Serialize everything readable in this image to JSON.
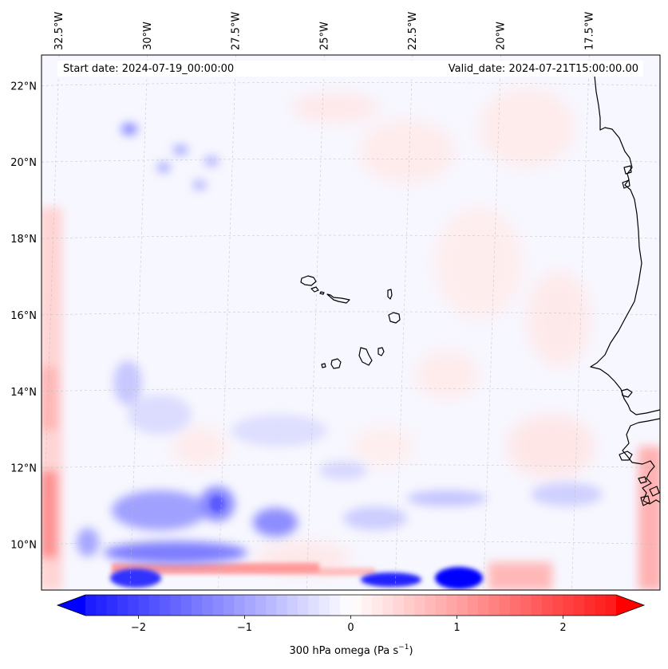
{
  "header": {
    "start_date": "Start date: 2024-07-19_00:00:00",
    "valid_date": "Valid_date: 2024-07-21T15:00:00.00"
  },
  "map": {
    "lat_range": [
      8.8,
      22.8
    ],
    "lon_range": [
      -33.0,
      -15.5
    ],
    "lon_ticks": [
      {
        "value": -32.5,
        "label": "32.5°W"
      },
      {
        "value": -30.0,
        "label": "30°W"
      },
      {
        "value": -27.5,
        "label": "27.5°W"
      },
      {
        "value": -25.0,
        "label": "25°W"
      },
      {
        "value": -22.5,
        "label": "22.5°W"
      },
      {
        "value": -20.0,
        "label": "20°W"
      },
      {
        "value": -17.5,
        "label": "17.5°W"
      }
    ],
    "lat_ticks": [
      {
        "value": 22,
        "label": "22°N"
      },
      {
        "value": 20,
        "label": "20°N"
      },
      {
        "value": 18,
        "label": "18°N"
      },
      {
        "value": 16,
        "label": "16°N"
      },
      {
        "value": 14,
        "label": "14°N"
      },
      {
        "value": 12,
        "label": "12°N"
      },
      {
        "value": 10,
        "label": "10°N"
      }
    ],
    "gridlines": true,
    "field_colors": {
      "background": "#f7f7ff",
      "strong_negative": "#0000ff",
      "negative": "#6f6fff",
      "weak_negative": "#cfd2ff",
      "weak_positive": "#ffe1e1",
      "positive": "#ff8a8a",
      "coastline": "#000000"
    }
  },
  "colorbar": {
    "label": "300 hPa omega (Pa s",
    "label_superscript": "−1",
    "label_close": ")",
    "range": [
      -2.75,
      2.75
    ],
    "ticks": [
      {
        "value": -2,
        "label": "−2"
      },
      {
        "value": -1,
        "label": "−1"
      },
      {
        "value": 0,
        "label": "0"
      },
      {
        "value": 1,
        "label": "1"
      },
      {
        "value": 2,
        "label": "2"
      }
    ],
    "color_min": "#0000ff",
    "color_mid": "#ffffff",
    "color_max": "#ff0000"
  }
}
